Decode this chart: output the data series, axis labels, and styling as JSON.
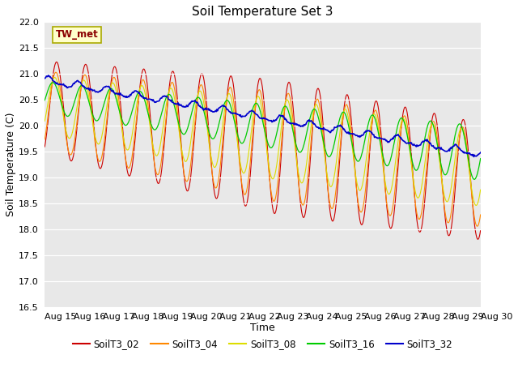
{
  "title": "Soil Temperature Set 3",
  "xlabel": "Time",
  "ylabel": "Soil Temperature (C)",
  "ylim": [
    16.5,
    22.0
  ],
  "yticks": [
    16.5,
    17.0,
    17.5,
    18.0,
    18.5,
    19.0,
    19.5,
    20.0,
    20.5,
    21.0,
    21.5,
    22.0
  ],
  "xtick_labels": [
    "Aug 15",
    "Aug 16",
    "Aug 17",
    "Aug 18",
    "Aug 19",
    "Aug 20",
    "Aug 21",
    "Aug 22",
    "Aug 23",
    "Aug 24",
    "Aug 25",
    "Aug 26",
    "Aug 27",
    "Aug 28",
    "Aug 29",
    "Aug 30"
  ],
  "annotation": "TW_met",
  "annotation_color": "#8B0000",
  "annotation_bg": "#FFFFCC",
  "annotation_edge": "#AAAA00",
  "series_colors": {
    "SoilT3_02": "#CC0000",
    "SoilT3_04": "#FF8800",
    "SoilT3_08": "#DDDD00",
    "SoilT3_16": "#00CC00",
    "SoilT3_32": "#0000CC"
  },
  "plot_bg": "#E8E8E8",
  "fig_bg": "#FFFFFF",
  "grid_color": "#FFFFFF",
  "title_fontsize": 11,
  "axis_fontsize": 9,
  "tick_fontsize": 8
}
